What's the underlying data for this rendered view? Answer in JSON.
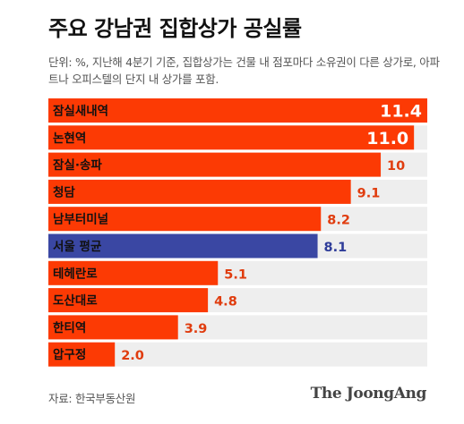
{
  "title": "주요 강남권 집합상가 공실률",
  "subtitle": "단위: %, 지난해 4분기 기준, 집합상가는 건물 내 점포마다 소유권이 다른 상가로, 아파트나 오피스텔의 단지 내 상가를 포함.",
  "source": "자료: 한국부동산원",
  "brand": "The JoongAng",
  "colors": {
    "bar": "#fc3a04",
    "highlight_bar": "#3a47a3",
    "category_background": "#eeeeee",
    "value_text": "#e03c0e",
    "highlight_value_text": "#2e3c99",
    "inside_value_text": "#ffffff",
    "label_text": "#111111"
  },
  "chart_data": {
    "type": "bar",
    "orientation": "horizontal",
    "categories": [
      "잠실새내역",
      "논현역",
      "잠실·송파",
      "청담",
      "남부터미널",
      "서울 평균",
      "테헤란로",
      "도산대로",
      "한티역",
      "압구정"
    ],
    "values": [
      11.4,
      11.0,
      10,
      9.1,
      8.2,
      8.1,
      5.1,
      4.8,
      3.9,
      2.0
    ],
    "value_labels": [
      "11.4",
      "11.0",
      "10",
      "9.1",
      "8.2",
      "8.1",
      "5.1",
      "4.8",
      "3.9",
      "2.0"
    ],
    "highlight_category": "서울 평균",
    "label_inside_threshold": 11,
    "xlim": [
      0,
      11.4
    ],
    "grid": false,
    "legend": "none"
  }
}
